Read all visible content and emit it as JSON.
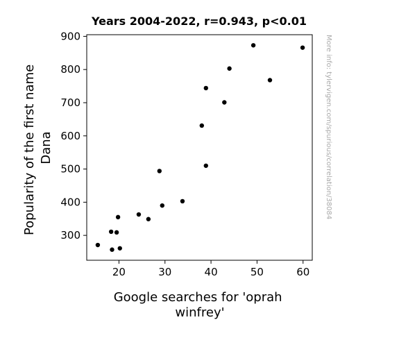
{
  "chart_data": {
    "type": "scatter",
    "title": "Years 2004-2022, r=0.943, p<0.01",
    "xlabel_lines": [
      "Google searches for 'oprah",
      "winfrey'"
    ],
    "ylabel_lines": [
      "Popularity of the first name",
      "Dana"
    ],
    "watermark": "More info: tylervigen.com/spurious/correlation/38084",
    "xlim": [
      13,
      62
    ],
    "ylim": [
      225,
      905
    ],
    "xticks": [
      20,
      30,
      40,
      50,
      60
    ],
    "yticks": [
      300,
      400,
      500,
      600,
      700,
      800,
      900
    ],
    "grid": false,
    "point_color": "#000000",
    "points": [
      {
        "x": 15.4,
        "y": 271
      },
      {
        "x": 18.3,
        "y": 311
      },
      {
        "x": 18.5,
        "y": 257
      },
      {
        "x": 19.5,
        "y": 309
      },
      {
        "x": 19.8,
        "y": 355
      },
      {
        "x": 20.2,
        "y": 261
      },
      {
        "x": 24.3,
        "y": 363
      },
      {
        "x": 26.4,
        "y": 349
      },
      {
        "x": 28.8,
        "y": 494
      },
      {
        "x": 29.4,
        "y": 390
      },
      {
        "x": 33.8,
        "y": 403
      },
      {
        "x": 38.0,
        "y": 631
      },
      {
        "x": 38.9,
        "y": 744
      },
      {
        "x": 38.9,
        "y": 510
      },
      {
        "x": 42.9,
        "y": 701
      },
      {
        "x": 44.0,
        "y": 803
      },
      {
        "x": 49.2,
        "y": 873
      },
      {
        "x": 52.8,
        "y": 768
      },
      {
        "x": 59.9,
        "y": 866
      }
    ]
  }
}
